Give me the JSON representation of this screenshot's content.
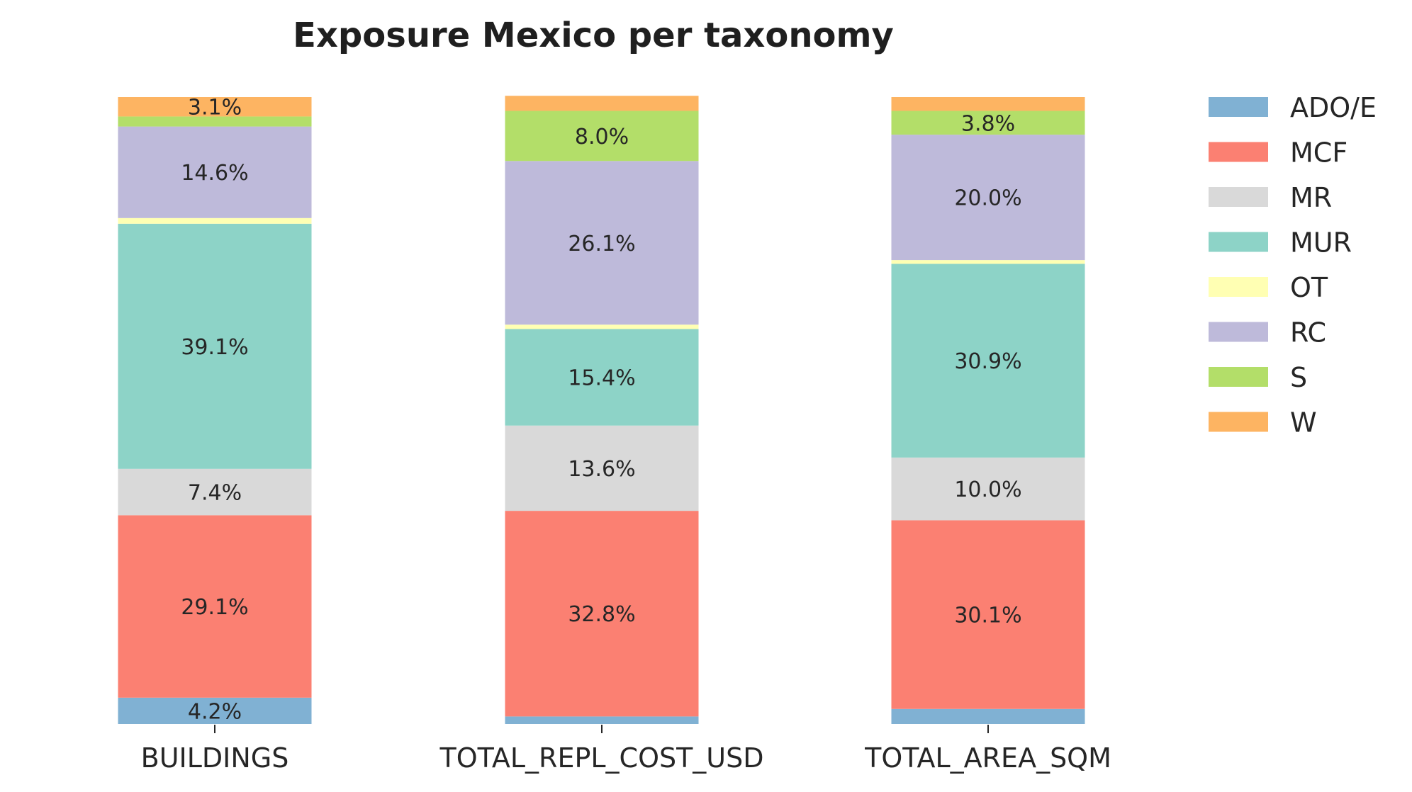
{
  "chart_data": {
    "type": "bar",
    "stacked": true,
    "percent": true,
    "title": "Exposure Mexico per taxonomy",
    "xlabel": "",
    "ylabel": "",
    "ylim": [
      0,
      100
    ],
    "grid": false,
    "legend_position": "right",
    "categories": [
      "BUILDINGS",
      "TOTAL_REPL_COST_USD",
      "TOTAL_AREA_SQM"
    ],
    "series": [
      {
        "name": "ADO/E",
        "color": "#80b1d3",
        "values": [
          4.2,
          1.2,
          2.4
        ],
        "labels": [
          "4.2%",
          "",
          ""
        ]
      },
      {
        "name": "MCF",
        "color": "#fb8072",
        "values": [
          29.1,
          32.8,
          30.1
        ],
        "labels": [
          "29.1%",
          "32.8%",
          "30.1%"
        ]
      },
      {
        "name": "MR",
        "color": "#d9d9d9",
        "values": [
          7.4,
          13.6,
          10.0
        ],
        "labels": [
          "7.4%",
          "13.6%",
          "10.0%"
        ]
      },
      {
        "name": "MUR",
        "color": "#8dd3c7",
        "values": [
          39.1,
          15.4,
          30.9
        ],
        "labels": [
          "39.1%",
          "15.4%",
          "30.9%"
        ]
      },
      {
        "name": "OT",
        "color": "#ffffb3",
        "values": [
          0.9,
          0.7,
          0.6
        ],
        "labels": [
          "",
          "",
          ""
        ]
      },
      {
        "name": "RC",
        "color": "#bebada",
        "values": [
          14.6,
          26.1,
          20.0
        ],
        "labels": [
          "14.6%",
          "26.1%",
          "20.0%"
        ]
      },
      {
        "name": "S",
        "color": "#b3de69",
        "values": [
          1.6,
          8.0,
          3.8
        ],
        "labels": [
          "",
          "8.0%",
          "3.8%"
        ]
      },
      {
        "name": "W",
        "color": "#fdb462",
        "values": [
          3.1,
          2.4,
          2.2
        ],
        "labels": [
          "3.1%",
          "",
          ""
        ]
      }
    ]
  }
}
